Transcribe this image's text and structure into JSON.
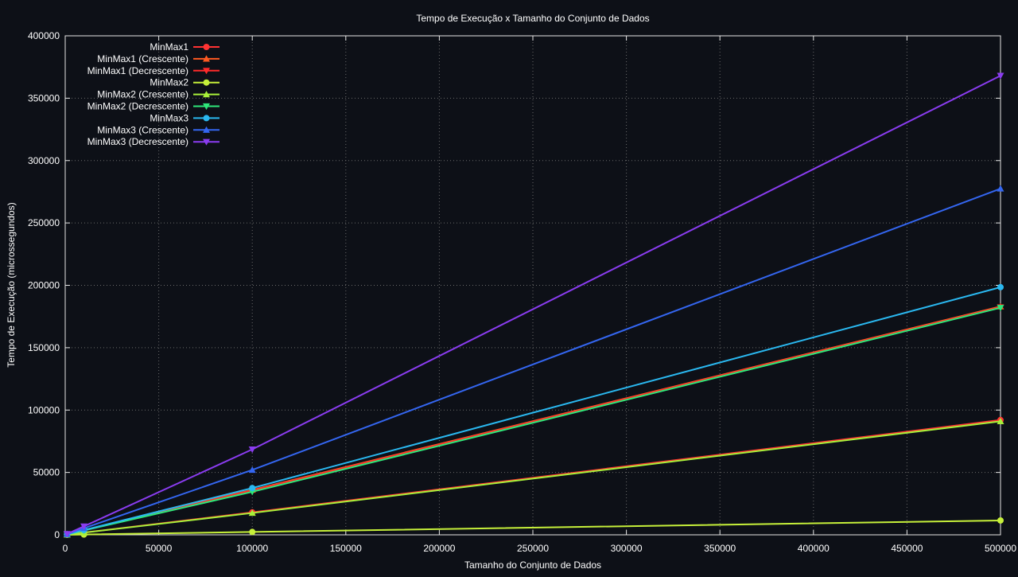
{
  "chart_data": {
    "type": "line",
    "title": "Tempo de Execução x Tamanho do Conjunto de Dados",
    "xlabel": "Tamanho do Conjunto de Dados",
    "ylabel": "Tempo de Execução (microssegundos)",
    "xlim": [
      0,
      500000
    ],
    "ylim": [
      0,
      400000
    ],
    "x_ticks": [
      0,
      50000,
      100000,
      150000,
      200000,
      250000,
      300000,
      350000,
      400000,
      450000,
      500000
    ],
    "y_ticks": [
      0,
      50000,
      100000,
      150000,
      200000,
      250000,
      300000,
      350000,
      400000
    ],
    "grid": true,
    "legend_position": "top-left",
    "x": [
      1000,
      10000,
      100000,
      500000
    ],
    "series": [
      {
        "name": "MinMax1",
        "color": "#ff3333",
        "marker": "circle",
        "values": [
          200,
          1800,
          18000,
          92000
        ]
      },
      {
        "name": "MinMax1 (Crescente)",
        "color": "#ff5a22",
        "marker": "triangle-up",
        "values": [
          350,
          3700,
          36000,
          183000
        ]
      },
      {
        "name": "MinMax1 (Decrescente)",
        "color": "#ff2a2a",
        "marker": "triangle-down",
        "values": [
          350,
          3600,
          35500,
          182500
        ]
      },
      {
        "name": "MinMax2",
        "color": "#c6f03a",
        "marker": "circle",
        "values": [
          20,
          230,
          2300,
          11500
        ]
      },
      {
        "name": "MinMax2 (Crescente)",
        "color": "#a8f03a",
        "marker": "triangle-up",
        "values": [
          180,
          1750,
          17500,
          91000
        ]
      },
      {
        "name": "MinMax2 (Decrescente)",
        "color": "#2ee87a",
        "marker": "triangle-down",
        "values": [
          350,
          3500,
          34500,
          182000
        ]
      },
      {
        "name": "MinMax3",
        "color": "#2ab8f0",
        "marker": "circle",
        "values": [
          400,
          3800,
          37500,
          198500
        ]
      },
      {
        "name": "MinMax3 (Crescente)",
        "color": "#3466f0",
        "marker": "triangle-up",
        "values": [
          550,
          5300,
          52000,
          277500
        ]
      },
      {
        "name": "MinMax3 (Decrescente)",
        "color": "#8a3cf0",
        "marker": "triangle-down",
        "values": [
          700,
          6800,
          68500,
          368000
        ]
      }
    ]
  }
}
